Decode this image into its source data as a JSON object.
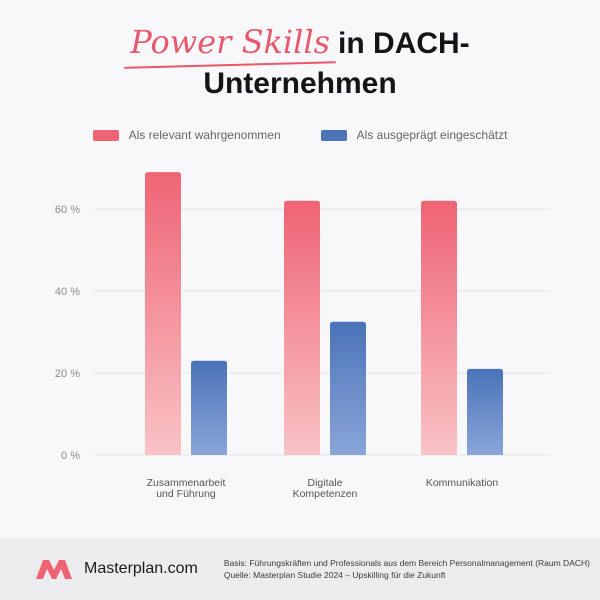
{
  "header": {
    "title_script": "Power Skills",
    "title_rest": "in DACH-",
    "title_line2": "Unternehmen"
  },
  "colors": {
    "relevant_top": "#ef6475",
    "relevant_bottom": "#f9c3c6",
    "pronounced_top": "#4b73b8",
    "pronounced_bottom": "#8aa6d9",
    "accent": "#e8586c"
  },
  "chart_data": {
    "type": "bar",
    "categories": [
      [
        "Zusammenarbeit",
        "und Führung"
      ],
      [
        "Digitale",
        "Kompetenzen"
      ],
      [
        "Kommunikation"
      ]
    ],
    "series": [
      {
        "name": "Als relevant wahrgenommen",
        "values": [
          69,
          62,
          62
        ]
      },
      {
        "name": "Als ausgeprägt eingeschätzt",
        "values": [
          23,
          32.5,
          21
        ]
      }
    ],
    "y_ticks": [
      "0 %",
      "20 %",
      "40 %",
      "60 %"
    ],
    "y_tick_values": [
      0,
      20,
      40,
      60
    ],
    "ylim": [
      0,
      70
    ],
    "grid": true,
    "legend_position": "top-center",
    "title": "",
    "xlabel": "",
    "ylabel": ""
  },
  "footer": {
    "logo_text": "Masterplan.com",
    "basis": "Basis: Führungskräften und Professionals aus dem Bereich Personalmanagement (Raum DACH)",
    "source": "Quelle: Masterplan Studie 2024 – Upskilling für die Zukunft"
  }
}
